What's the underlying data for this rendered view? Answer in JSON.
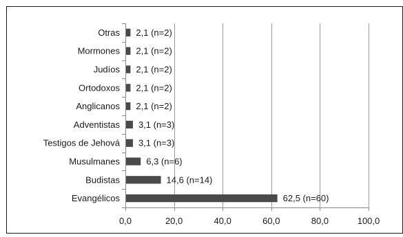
{
  "chart_data": {
    "type": "bar",
    "orientation": "horizontal",
    "title": "",
    "xlabel": "",
    "ylabel": "",
    "categories": [
      "Evangélicos",
      "Budistas",
      "Musulmanes",
      "Testigos de Jehová",
      "Adventistas",
      "Anglicanos",
      "Ortodoxos",
      "Judíos",
      "Mormones",
      "Otras"
    ],
    "values": [
      62.5,
      14.6,
      6.3,
      3.1,
      3.1,
      2.1,
      2.1,
      2.1,
      2.1,
      2.1
    ],
    "data_labels": [
      "62,5 (n=60)",
      "14,6 (n=14)",
      "6,3 (n=6)",
      "3,1 (n=3)",
      "3,1 (n=3)",
      "2,1 (n=2)",
      "2,1 (n=2)",
      "2,1 (n=2)",
      "2,1 (n=2)",
      "2,1 (n=2)"
    ],
    "xlim": [
      0,
      100
    ],
    "xticks": [
      0,
      20,
      40,
      60,
      80,
      100
    ],
    "xtick_labels": [
      "0,0",
      "20,0",
      "40,0",
      "60,0",
      "80,0",
      "100,0"
    ],
    "grid": "vertical",
    "legend": "none",
    "colors": {
      "bar": "#4a4a4a",
      "grid": "#9a9a9a",
      "axis": "#8a8a8a",
      "frame": "#1a1a1a"
    }
  }
}
